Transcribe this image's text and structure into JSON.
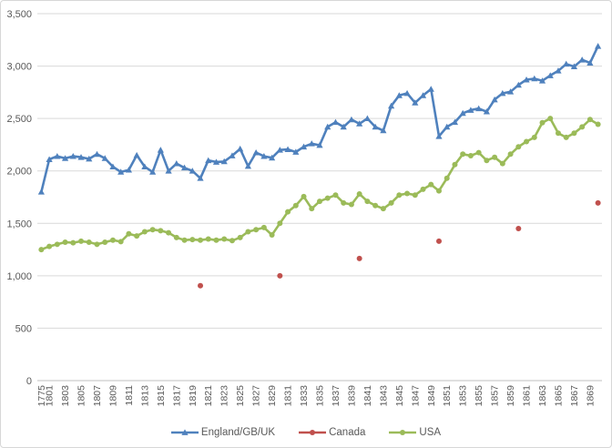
{
  "chart": {
    "background": "#FFFFFF",
    "border_color": "#D7D7D7",
    "gridline_color": "#D9D9D9",
    "axisline_color": "#BFBFBF",
    "axis_text_color": "#595959"
  },
  "chart_data": {
    "type": "line",
    "title": "",
    "xlabel": "",
    "ylabel": "",
    "ylim": [
      0,
      3500
    ],
    "ytick_step": 500,
    "ytick_labels": [
      "0",
      "500",
      "1,000",
      "1,500",
      "2,000",
      "2,500",
      "3,000",
      "3,500"
    ],
    "grid": true,
    "legend_position": "bottom",
    "categories": [
      "1775",
      "1801",
      "1802",
      "1803",
      "1804",
      "1805",
      "1806",
      "1807",
      "1808",
      "1809",
      "1810",
      "1811",
      "1812",
      "1813",
      "1814",
      "1815",
      "1816",
      "1817",
      "1818",
      "1819",
      "1820",
      "1821",
      "1822",
      "1823",
      "1824",
      "1825",
      "1826",
      "1827",
      "1828",
      "1829",
      "1830",
      "1831",
      "1832",
      "1833",
      "1834",
      "1835",
      "1836",
      "1837",
      "1838",
      "1839",
      "1840",
      "1841",
      "1842",
      "1843",
      "1844",
      "1845",
      "1846",
      "1847",
      "1848",
      "1849",
      "1850",
      "1851",
      "1852",
      "1853",
      "1854",
      "1855",
      "1856",
      "1857",
      "1858",
      "1859",
      "1860",
      "1861",
      "1862",
      "1863",
      "1864",
      "1865",
      "1866",
      "1867",
      "1868",
      "1869",
      "1870"
    ],
    "visible_x_tick_labels": [
      "1775",
      "1801",
      "1803",
      "1805",
      "1807",
      "1809",
      "1811",
      "1813",
      "1815",
      "1817",
      "1819",
      "1821",
      "1823",
      "1825",
      "1827",
      "1829",
      "1831",
      "1833",
      "1835",
      "1837",
      "1839",
      "1841",
      "1843",
      "1845",
      "1847",
      "1849",
      "1851",
      "1853",
      "1855",
      "1857",
      "1859",
      "1861",
      "1863",
      "1865",
      "1867",
      "1869"
    ],
    "series": [
      {
        "name": "England/GB/UK",
        "color": "#4F81BD",
        "marker": "triangle",
        "line": true,
        "values": [
          1800,
          2110,
          2140,
          2120,
          2140,
          2130,
          2115,
          2160,
          2120,
          2040,
          1990,
          2010,
          2150,
          2040,
          1990,
          2200,
          2000,
          2070,
          2030,
          2000,
          1930,
          2100,
          2085,
          2090,
          2145,
          2210,
          2045,
          2175,
          2140,
          2125,
          2200,
          2205,
          2180,
          2230,
          2260,
          2245,
          2420,
          2465,
          2420,
          2490,
          2450,
          2500,
          2420,
          2385,
          2620,
          2720,
          2740,
          2650,
          2720,
          2780,
          2330,
          2420,
          2465,
          2550,
          2580,
          2595,
          2565,
          2680,
          2740,
          2755,
          2820,
          2870,
          2880,
          2860,
          2910,
          2955,
          3020,
          2995,
          3060,
          3030,
          3190
        ]
      },
      {
        "name": "Canada",
        "color": "#C0504D",
        "marker": "circle",
        "line": false,
        "values": [
          null,
          null,
          null,
          null,
          null,
          null,
          null,
          null,
          null,
          null,
          null,
          null,
          null,
          null,
          null,
          null,
          null,
          null,
          null,
          null,
          905,
          null,
          null,
          null,
          null,
          null,
          null,
          null,
          null,
          null,
          1000,
          null,
          null,
          null,
          null,
          null,
          null,
          null,
          null,
          null,
          1165,
          null,
          null,
          null,
          null,
          null,
          null,
          null,
          null,
          null,
          1330,
          null,
          null,
          null,
          null,
          null,
          null,
          null,
          null,
          null,
          1450,
          null,
          null,
          null,
          null,
          null,
          null,
          null,
          null,
          null,
          1695
        ]
      },
      {
        "name": "USA",
        "color": "#9BBB59",
        "marker": "circle",
        "line": true,
        "values": [
          1250,
          1280,
          1300,
          1320,
          1315,
          1330,
          1320,
          1300,
          1320,
          1340,
          1325,
          1400,
          1380,
          1420,
          1440,
          1430,
          1410,
          1365,
          1340,
          1345,
          1340,
          1350,
          1340,
          1350,
          1335,
          1365,
          1420,
          1440,
          1460,
          1390,
          1500,
          1610,
          1670,
          1755,
          1640,
          1710,
          1740,
          1770,
          1695,
          1680,
          1780,
          1710,
          1670,
          1640,
          1695,
          1770,
          1785,
          1770,
          1825,
          1870,
          1810,
          1930,
          2060,
          2160,
          2145,
          2175,
          2100,
          2130,
          2070,
          2160,
          2230,
          2280,
          2320,
          2460,
          2500,
          2360,
          2320,
          2360,
          2420,
          2490,
          2445
        ]
      }
    ]
  }
}
